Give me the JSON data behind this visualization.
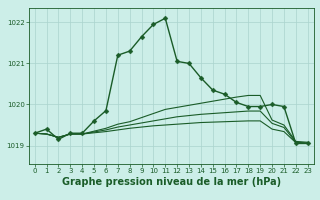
{
  "background_color": "#cceee8",
  "grid_color": "#aad4ce",
  "line_color": "#1a5c28",
  "marker_color": "#1a5c28",
  "ylim": [
    1018.55,
    1022.35
  ],
  "xlim": [
    -0.5,
    23.5
  ],
  "yticks": [
    1019,
    1020,
    1021,
    1022
  ],
  "xticks": [
    0,
    1,
    2,
    3,
    4,
    5,
    6,
    7,
    8,
    9,
    10,
    11,
    12,
    13,
    14,
    15,
    16,
    17,
    18,
    19,
    20,
    21,
    22,
    23
  ],
  "xlabel": "Graphe pression niveau de la mer (hPa)",
  "xlabel_fontsize": 7,
  "tick_fontsize": 5,
  "series": [
    {
      "x": [
        0,
        1,
        2,
        3,
        4,
        5,
        6,
        7,
        8,
        9,
        10,
        11,
        12,
        13,
        14,
        15,
        16,
        17,
        18,
        19,
        20,
        21,
        22,
        23
      ],
      "y": [
        1019.3,
        1019.4,
        1019.15,
        1019.3,
        1019.3,
        1019.6,
        1019.85,
        1021.2,
        1021.3,
        1021.65,
        1021.95,
        1022.1,
        1021.05,
        1021.0,
        1020.65,
        1020.35,
        1020.25,
        1020.05,
        1019.95,
        1019.95,
        1020.0,
        1019.95,
        1019.05,
        1019.05
      ],
      "linewidth": 1.0,
      "markersize": 2.5,
      "has_markers": true
    },
    {
      "x": [
        0,
        1,
        2,
        3,
        4,
        5,
        6,
        7,
        8,
        9,
        10,
        11,
        12,
        13,
        14,
        15,
        16,
        17,
        18,
        19,
        20,
        21,
        22,
        23
      ],
      "y": [
        1019.3,
        1019.28,
        1019.2,
        1019.28,
        1019.28,
        1019.35,
        1019.42,
        1019.52,
        1019.58,
        1019.68,
        1019.78,
        1019.88,
        1019.93,
        1019.98,
        1020.03,
        1020.08,
        1020.13,
        1020.18,
        1020.22,
        1020.22,
        1019.62,
        1019.5,
        1019.1,
        1019.08
      ],
      "linewidth": 0.8,
      "markersize": 0,
      "has_markers": false
    },
    {
      "x": [
        0,
        1,
        2,
        3,
        4,
        5,
        6,
        7,
        8,
        9,
        10,
        11,
        12,
        13,
        14,
        15,
        16,
        17,
        18,
        19,
        20,
        21,
        22,
        23
      ],
      "y": [
        1019.3,
        1019.28,
        1019.2,
        1019.28,
        1019.28,
        1019.33,
        1019.38,
        1019.45,
        1019.5,
        1019.55,
        1019.6,
        1019.65,
        1019.7,
        1019.73,
        1019.76,
        1019.78,
        1019.8,
        1019.82,
        1019.84,
        1019.84,
        1019.54,
        1019.44,
        1019.08,
        1019.06
      ],
      "linewidth": 0.8,
      "markersize": 0,
      "has_markers": false
    },
    {
      "x": [
        0,
        1,
        2,
        3,
        4,
        5,
        6,
        7,
        8,
        9,
        10,
        11,
        12,
        13,
        14,
        15,
        16,
        17,
        18,
        19,
        20,
        21,
        22,
        23
      ],
      "y": [
        1019.3,
        1019.28,
        1019.2,
        1019.28,
        1019.28,
        1019.31,
        1019.34,
        1019.38,
        1019.42,
        1019.45,
        1019.48,
        1019.5,
        1019.52,
        1019.54,
        1019.56,
        1019.57,
        1019.58,
        1019.59,
        1019.6,
        1019.6,
        1019.4,
        1019.34,
        1019.07,
        1019.05
      ],
      "linewidth": 0.8,
      "markersize": 0,
      "has_markers": false
    }
  ]
}
